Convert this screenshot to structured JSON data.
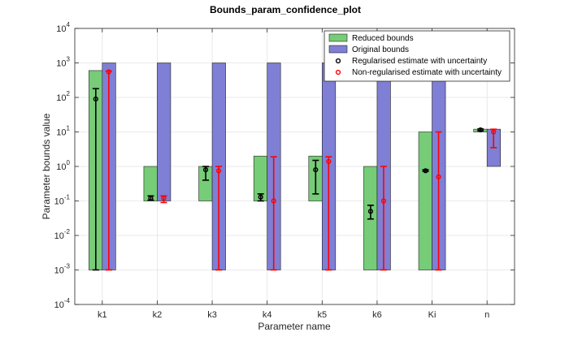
{
  "chart_data": {
    "type": "bar",
    "title": "Bounds_param_confidence_plot",
    "xlabel": "Parameter name",
    "ylabel": "Parameter bounds value",
    "yscale": "log",
    "ylim_exponents": [
      -4,
      4
    ],
    "ytick_base": "10",
    "ytick_exponents": [
      "-4",
      "-3",
      "-2",
      "-1",
      "0",
      "1",
      "2",
      "3",
      "4"
    ],
    "categories": [
      "k1",
      "k2",
      "k3",
      "k4",
      "k5",
      "k6",
      "Ki",
      "n"
    ],
    "grid": true,
    "legend_position": "top-right",
    "series": [
      {
        "name": "Reduced bounds",
        "kind": "floating-bar",
        "color": "#77cc77",
        "lower": [
          0.001,
          0.1,
          0.1,
          0.1,
          0.1,
          0.001,
          0.001,
          10
        ],
        "upper": [
          600,
          1,
          1,
          2,
          2,
          1,
          10,
          12
        ]
      },
      {
        "name": "Original bounds",
        "kind": "floating-bar",
        "color": "#7f7fd5",
        "lower": [
          0.001,
          0.1,
          0.001,
          0.001,
          0.001,
          0.001,
          0.001,
          1
        ],
        "upper": [
          1000,
          1000,
          1000,
          1000,
          1000,
          1000,
          1000,
          12
        ]
      },
      {
        "name": "Regularised estimate with uncertainty",
        "kind": "errorbar",
        "color": "#000000",
        "estimate": [
          90,
          0.12,
          0.8,
          0.13,
          0.8,
          0.05,
          0.75,
          11.5
        ],
        "lower": [
          0.001,
          0.105,
          0.4,
          0.1,
          0.16,
          0.03,
          0.72,
          10.8
        ],
        "upper": [
          180,
          0.14,
          1.0,
          0.16,
          1.5,
          0.075,
          0.8,
          12.2
        ]
      },
      {
        "name": "Non-regularised estimate with uncertainty",
        "kind": "errorbar",
        "color": "#ff0000",
        "estimate": [
          550,
          0.12,
          0.75,
          0.1,
          1.4,
          0.1,
          0.5,
          10
        ],
        "lower": [
          0.001,
          0.09,
          0.001,
          0.001,
          0.001,
          0.001,
          0.001,
          3.5
        ],
        "upper": [
          580,
          0.14,
          1.0,
          1.9,
          1.9,
          1.0,
          10,
          12
        ]
      }
    ]
  }
}
